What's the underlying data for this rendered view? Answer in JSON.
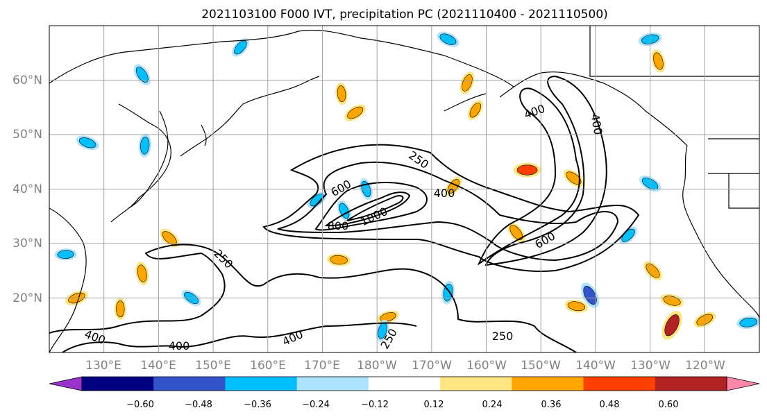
{
  "title": "2021103100 F000 IVT, precipitation PC (2021110400 - 2021110500)",
  "map": {
    "lat_labels": [
      "20°N",
      "30°N",
      "40°N",
      "50°N",
      "60°N"
    ],
    "lon_labels": [
      "130°E",
      "140°E",
      "150°E",
      "160°E",
      "170°E",
      "180°W",
      "170°W",
      "160°W",
      "150°W",
      "140°W",
      "130°W",
      "120°W"
    ],
    "lat_range": [
      10,
      70
    ],
    "lon_range_east": [
      120,
      250
    ],
    "gridlines": true
  },
  "ivt_contours": {
    "levels": [
      250,
      400,
      600,
      800,
      1000
    ],
    "labels": [
      {
        "text": "250",
        "lon": 184,
        "lat": 45.5
      },
      {
        "text": "400",
        "lon": 188,
        "lat": 40.5
      },
      {
        "text": "600",
        "lon": 172.5,
        "lat": 40.5
      },
      {
        "text": "800",
        "lon": 173,
        "lat": 33
      },
      {
        "text": "1000",
        "lon": 180,
        "lat": 34.5
      },
      {
        "text": "400",
        "lon": 207,
        "lat": 54
      },
      {
        "text": "400",
        "lon": 218,
        "lat": 51
      },
      {
        "text": "600",
        "lon": 211.5,
        "lat": 31.5
      },
      {
        "text": "250",
        "lon": 151,
        "lat": 26.5
      },
      {
        "text": "400",
        "lon": 128,
        "lat": 13
      },
      {
        "text": "400",
        "lon": 143,
        "lat": 11
      },
      {
        "text": "400",
        "lon": 164,
        "lat": 12.5
      },
      {
        "text": "250",
        "lon": 201,
        "lat": 13
      },
      {
        "text": "250",
        "lon": 181,
        "lat": 13
      }
    ]
  },
  "colorbar": {
    "ticks": [
      "−0.60",
      "−0.48",
      "−0.36",
      "−0.24",
      "−0.12",
      "0.12",
      "0.24",
      "0.36",
      "0.48",
      "0.60"
    ],
    "colors": [
      "#9933cc",
      "#000080",
      "#3355cc",
      "#00bfff",
      "#aee3ff",
      "#ffffff",
      "#ffe680",
      "#ffa500",
      "#ff4000",
      "#b22222",
      "#ff88aa"
    ],
    "extend": "both"
  },
  "precip_blobs": [
    {
      "lon": 207.5,
      "lat": 43.5,
      "v": 0.4
    },
    {
      "lon": 216,
      "lat": 42,
      "v": 0.3
    },
    {
      "lon": 231.5,
      "lat": 63.5,
      "v": 0.3
    },
    {
      "lon": 196.5,
      "lat": 59.5,
      "v": 0.3
    },
    {
      "lon": 176,
      "lat": 54,
      "v": 0.3
    },
    {
      "lon": 173,
      "lat": 27,
      "v": 0.3
    },
    {
      "lon": 142,
      "lat": 31,
      "v": 0.3
    },
    {
      "lon": 137,
      "lat": 24.5,
      "v": 0.3
    },
    {
      "lon": 234,
      "lat": 15,
      "v": 0.5
    },
    {
      "lon": 240,
      "lat": 16,
      "v": 0.3
    },
    {
      "lon": 216.5,
      "lat": 18.5,
      "v": 0.3
    },
    {
      "lon": 230.5,
      "lat": 25,
      "v": 0.3
    },
    {
      "lon": 173.5,
      "lat": 57.5,
      "v": 0.26
    },
    {
      "lon": 198,
      "lat": 54.5,
      "v": 0.26
    },
    {
      "lon": 125,
      "lat": 20,
      "v": 0.3
    },
    {
      "lon": 234,
      "lat": 19.5,
      "v": 0.3
    },
    {
      "lon": 205.5,
      "lat": 32,
      "v": 0.3
    },
    {
      "lon": 133,
      "lat": 18,
      "v": 0.26
    },
    {
      "lon": 194,
      "lat": 40.5,
      "v": 0.26
    },
    {
      "lon": 182,
      "lat": 16.5,
      "v": 0.26
    },
    {
      "lon": 127,
      "lat": 48.5,
      "v": -0.3
    },
    {
      "lon": 137,
      "lat": 61,
      "v": -0.3
    },
    {
      "lon": 137.5,
      "lat": 48,
      "v": -0.3
    },
    {
      "lon": 155,
      "lat": 66,
      "v": -0.26
    },
    {
      "lon": 230,
      "lat": 67.5,
      "v": -0.3
    },
    {
      "lon": 193,
      "lat": 67.5,
      "v": -0.3
    },
    {
      "lon": 219,
      "lat": 20.5,
      "v": -0.4
    },
    {
      "lon": 193,
      "lat": 21,
      "v": -0.3
    },
    {
      "lon": 226,
      "lat": 31.5,
      "v": -0.26
    },
    {
      "lon": 248,
      "lat": 15.5,
      "v": -0.3
    },
    {
      "lon": 230,
      "lat": 41,
      "v": -0.3
    },
    {
      "lon": 174,
      "lat": 36,
      "v": -0.26
    },
    {
      "lon": 181,
      "lat": 14,
      "v": -0.26
    },
    {
      "lon": 169,
      "lat": 38,
      "v": -0.26
    },
    {
      "lon": 123,
      "lat": 28,
      "v": -0.26
    },
    {
      "lon": 146,
      "lat": 20,
      "v": -0.26
    },
    {
      "lon": 178,
      "lat": 40,
      "v": -0.26
    }
  ]
}
